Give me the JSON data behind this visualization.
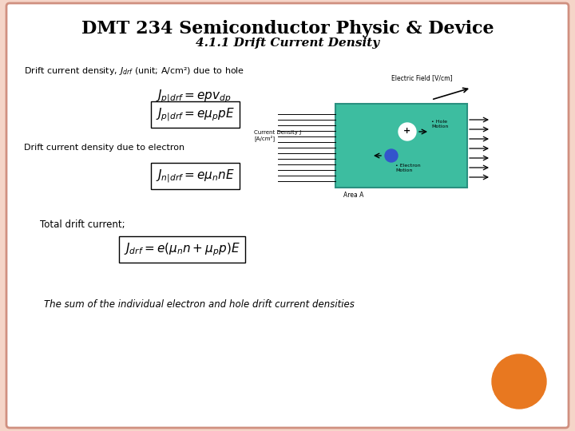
{
  "title": "DMT 234 Semiconductor Physic & Device",
  "subtitle": "4.1.1 Drift Current Density",
  "title_fontsize": 16,
  "subtitle_fontsize": 11,
  "bg_color": "#f5d5c8",
  "panel_color": "#ffffff",
  "border_color": "#d09080",
  "orange_circle_color": "#e87820",
  "text1": "Drift current density, $J_{drf}$ (unit; A/cm²) due to hole",
  "text2": "Drift current density due to electron",
  "text3": "Total drift current;",
  "text4": "The sum of the individual electron and hole drift current densities",
  "eq1_text": "$J_{p|drf} = epv_{dp}$",
  "eq2_text": "$J_{p|drf} = e\\mu_p pE$",
  "eq3_text": "$J_{n|drf} = e\\mu_n nE$",
  "eq4_text": "$J_{drf} = e(\\mu_n n + \\mu_p p)E$",
  "teal_color": "#3dbda0",
  "teal_edge": "#2a9080",
  "blue_dot": "#3355cc"
}
